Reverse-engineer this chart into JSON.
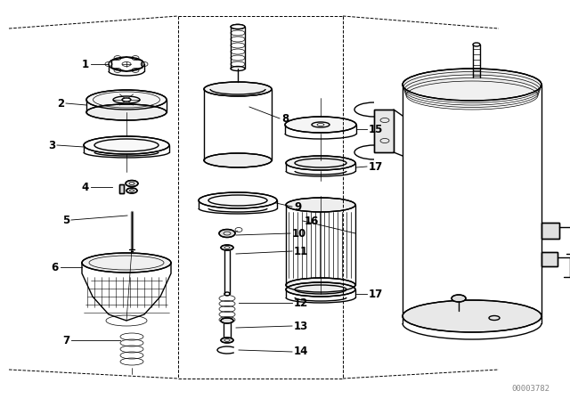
{
  "background_color": "#ffffff",
  "line_color": "#000000",
  "watermark": "00003782",
  "watermark_color": "#888888",
  "figsize": [
    6.4,
    4.48
  ],
  "dpi": 100,
  "lw_main": 1.0,
  "lw_thin": 0.5,
  "lw_label": 0.7
}
